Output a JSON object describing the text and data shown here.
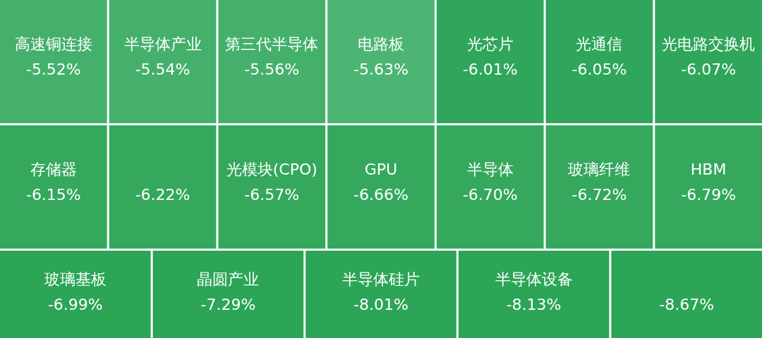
{
  "chart_data": {
    "type": "other",
    "categories": [
      "高速铜连接",
      "半导体产业",
      "第三代半导体",
      "电路板",
      "光芯片",
      "光通信",
      "光电路交换机",
      "存储器",
      null,
      "光模块(CPO)",
      "GPU",
      "半导体",
      "玻璃纤维",
      "HBM",
      "玻璃基板",
      "晶圆产业",
      "半导体硅片",
      "半导体设备",
      null
    ],
    "values": [
      -5.52,
      -5.54,
      -5.56,
      -5.63,
      -6.01,
      -6.05,
      -6.07,
      -6.15,
      -6.22,
      -6.57,
      -6.66,
      -6.7,
      -6.72,
      -6.79,
      -6.99,
      -7.29,
      -8.01,
      -8.13,
      -8.67
    ],
    "value_labels": [
      "-5.52%",
      "-5.54%",
      "-5.56%",
      "-5.63%",
      "-6.01%",
      "-6.05%",
      "-6.07%",
      "-6.15%",
      "-6.22%",
      "-6.57%",
      "-6.66%",
      "-6.70%",
      "-6.72%",
      "-6.79%",
      "-6.99%",
      "-7.29%",
      "-8.01%",
      "-8.13%",
      "-8.67%"
    ],
    "colors": [
      "#45b06c",
      "#45b06c",
      "#45b06c",
      "#4db573",
      "#2fa65b",
      "#2fa65b",
      "#2fa65b",
      "#35a85e",
      "#35a85e",
      "#35a85e",
      "#35a85e",
      "#35a85e",
      "#35a85e",
      "#35a85e",
      "#2ca556",
      "#2ca556",
      "#2ca556",
      "#2ca556",
      "#2ca556"
    ]
  }
}
